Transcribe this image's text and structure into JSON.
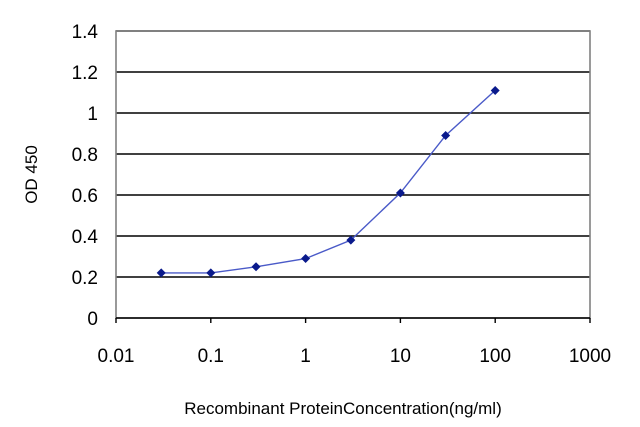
{
  "chart_data": {
    "type": "line",
    "title": "",
    "xlabel": "Recombinant ProteinConcentration(ng/ml)",
    "ylabel": "OD 450",
    "xscale": "log",
    "xlim": [
      0.01,
      1000
    ],
    "ylim": [
      0,
      1.4
    ],
    "x_ticks": [
      0.01,
      0.1,
      1,
      10,
      100,
      1000
    ],
    "x_tick_labels": [
      "0.01",
      "0.1",
      "1",
      "10",
      "100",
      "1000"
    ],
    "y_ticks": [
      0,
      0.2,
      0.4,
      0.6,
      0.8,
      1,
      1.2,
      1.4
    ],
    "y_tick_labels": [
      "0",
      "0.2",
      "0.4",
      "0.6",
      "0.8",
      "1",
      "1.2",
      "1.4"
    ],
    "grid": "horizontal",
    "legend": "none",
    "colors": {
      "line": "#4a5ac8",
      "marker": "#0a1a8c",
      "grid": "#000000",
      "frame": "#808080"
    },
    "series": [
      {
        "x": [
          0.03,
          0.1,
          0.3,
          1,
          3,
          10,
          30,
          100
        ],
        "y": [
          0.22,
          0.22,
          0.25,
          0.29,
          0.38,
          0.61,
          0.89,
          1.11
        ]
      }
    ]
  }
}
